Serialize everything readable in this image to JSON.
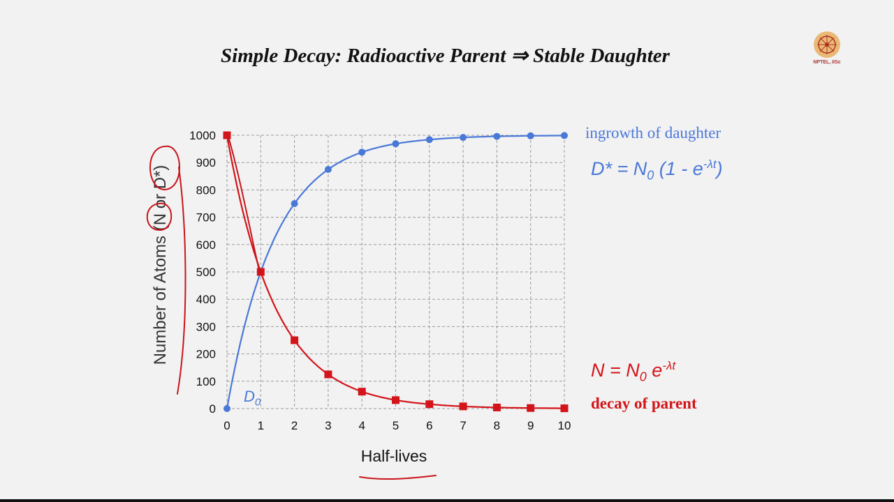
{
  "slide": {
    "title": "Simple Decay: Radioactive Parent ⇒ Stable Daughter",
    "logo_text": "NPTEL, IISc"
  },
  "annotations": {
    "daughter_label": "ingrowth of daughter",
    "daughter_eq_lhs": "D* = N",
    "daughter_eq_sub": "0",
    "daughter_eq_mid": " (1 - e",
    "daughter_eq_sup": "-λt",
    "daughter_eq_end": ")",
    "parent_eq_lhs": "N = N",
    "parent_eq_sub": "0",
    "parent_eq_mid": " e",
    "parent_eq_sup": "-λt",
    "parent_label": "decay of parent",
    "d0_label": "D",
    "d0_sub": "0"
  },
  "colors": {
    "daughter": "#4a78d8",
    "parent": "#d3141a",
    "grid": "#9a9a9a",
    "ink": "#c8141a"
  },
  "chart_data": {
    "type": "line",
    "xlabel": "Half-lives",
    "ylabel": "Number of Atoms (N or D*)",
    "x": [
      0,
      1,
      2,
      3,
      4,
      5,
      6,
      7,
      8,
      9,
      10
    ],
    "xlim": [
      0,
      10
    ],
    "ylim": [
      0,
      1000
    ],
    "xticks": [
      "0",
      "1",
      "2",
      "3",
      "4",
      "5",
      "6",
      "7",
      "8",
      "9",
      "10"
    ],
    "yticks": [
      "0",
      "100",
      "200",
      "300",
      "400",
      "500",
      "600",
      "700",
      "800",
      "900",
      "1000"
    ],
    "grid": true,
    "series": [
      {
        "name": "ingrowth of daughter",
        "marker": "circle",
        "color": "#4a78d8",
        "values": [
          0,
          500,
          750,
          875,
          938,
          969,
          984,
          992,
          996,
          998,
          999
        ]
      },
      {
        "name": "decay of parent",
        "marker": "square",
        "color": "#d3141a",
        "values": [
          1000,
          500,
          250,
          125,
          62,
          31,
          16,
          8,
          4,
          2,
          1
        ]
      }
    ]
  }
}
